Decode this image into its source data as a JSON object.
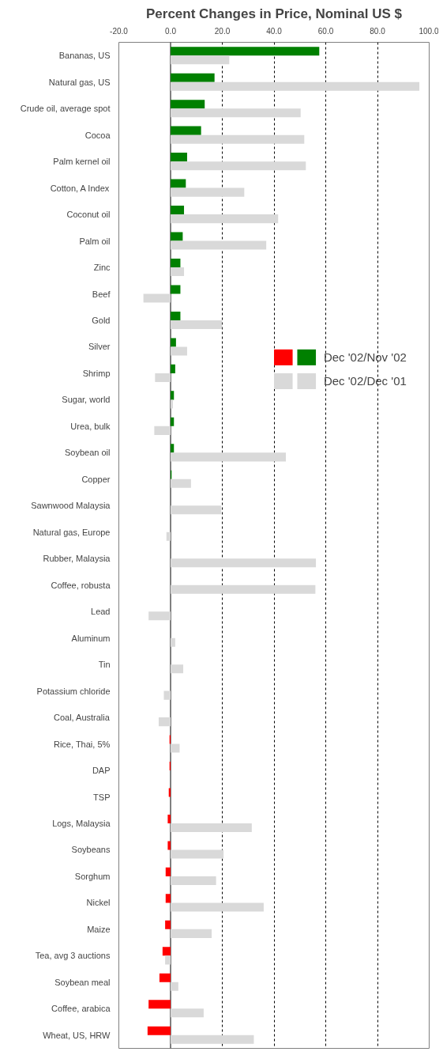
{
  "chart_data": {
    "type": "bar",
    "orientation": "horizontal",
    "title": "Percent Changes in Price, Nominal US $",
    "categories": [
      "Bananas, US",
      "Natural gas, US",
      "Crude oil, average spot",
      "Cocoa",
      "Palm kernel oil",
      "Cotton, A Index",
      "Coconut oil",
      "Palm oil",
      "Zinc",
      "Beef",
      "Gold",
      "Silver",
      "Shrimp",
      "Sugar, world",
      "Urea, bulk",
      "Soybean oil",
      "Copper",
      "Sawnwood Malaysia",
      "Natural gas, Europe",
      "Rubber, Malaysia",
      "Coffee, robusta",
      "Lead",
      "Aluminum",
      "Tin",
      "Potassium chloride",
      "Coal, Australia",
      "Rice, Thai, 5%",
      "DAP",
      "TSP",
      "Logs, Malaysia",
      "Soybeans",
      "Sorghum",
      "Nickel",
      "Maize",
      "Tea, avg 3 auctions",
      "Soybean meal",
      "Coffee, arabica",
      "Wheat, US, HRW"
    ],
    "series": [
      {
        "name": "Dec '02/Nov '02",
        "colors": [
          "#008000",
          "#008000",
          "#008000",
          "#008000",
          "#008000",
          "#008000",
          "#008000",
          "#008000",
          "#008000",
          "#008000",
          "#008000",
          "#008000",
          "#008000",
          "#008000",
          "#008000",
          "#008000",
          "#008000",
          null,
          null,
          null,
          null,
          null,
          null,
          null,
          null,
          null,
          "#ff0000",
          "#ff0000",
          "#ff0000",
          "#ff0000",
          "#ff0000",
          "#ff0000",
          "#ff0000",
          "#ff0000",
          "#ff0000",
          "#ff0000",
          "#ff0000",
          "#ff0000"
        ],
        "values": [
          57.5,
          17.0,
          13.2,
          11.8,
          6.4,
          5.9,
          5.2,
          4.7,
          3.8,
          3.8,
          3.8,
          2.1,
          1.8,
          1.3,
          1.3,
          1.3,
          0.4,
          null,
          null,
          null,
          null,
          null,
          null,
          null,
          null,
          null,
          -0.4,
          -0.4,
          -0.7,
          -1.1,
          -1.1,
          -1.9,
          -1.9,
          -2.1,
          -3.1,
          -4.3,
          -8.5,
          -8.9
        ]
      },
      {
        "name": "Dec '02/Dec '01",
        "color": "#d9d9d9",
        "values": [
          22.7,
          96.2,
          50.3,
          51.7,
          52.3,
          28.5,
          41.6,
          37.0,
          5.2,
          -10.5,
          19.9,
          6.4,
          -6.0,
          0.9,
          -6.3,
          44.6,
          7.9,
          19.6,
          -1.6,
          56.2,
          56.0,
          -8.5,
          1.8,
          4.9,
          -2.6,
          -4.6,
          3.5,
          null,
          null,
          31.4,
          20.5,
          17.6,
          36.0,
          15.9,
          -2.1,
          3.0,
          12.8,
          32.2
        ]
      }
    ],
    "xlim": [
      -20,
      100
    ],
    "xticks": [
      {
        "value": -20,
        "label": "-20.0"
      },
      {
        "value": 0,
        "label": "0.0"
      },
      {
        "value": 20,
        "label": "20.0"
      },
      {
        "value": 40,
        "label": "40.0"
      },
      {
        "value": 60,
        "label": "60.0"
      },
      {
        "value": 80,
        "label": "80.0"
      },
      {
        "value": 100,
        "label": "100.0"
      }
    ],
    "grid": "x",
    "legend": "right"
  }
}
